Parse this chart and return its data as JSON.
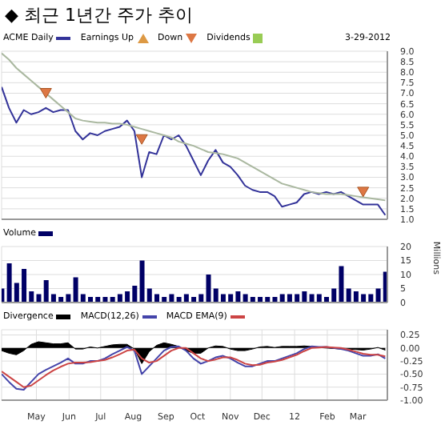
{
  "chart_data": [
    {
      "type": "line",
      "title": "◆ 최근 1년간 주가 추이",
      "legend": "top left",
      "grid": true,
      "tick_labels": "y",
      "annotations": [
        "Earnings Up",
        "Dividends",
        "3-29-2012"
      ],
      "xticks": [
        {
          "value": "2011-05-01",
          "label": null
        },
        {
          "value": "2011-06-01",
          "label": null
        },
        {
          "value": "2011-07-01",
          "label": null
        },
        {
          "value": "2011-08-01",
          "label": null
        },
        {
          "value": "2011-09-01",
          "label": null
        },
        {
          "value": "2011-10-01",
          "label": null
        },
        {
          "value": "2011-11-01",
          "label": null
        },
        {
          "value": "2011-12-01",
          "label": null
        },
        {
          "value": "2012-01-01",
          "label": null
        },
        {
          "value": "2012-02-01",
          "label": null
        },
        {
          "value": "2012-03-01",
          "label": null
        }
      ],
      "x": [
        "2011-03-29",
        "2011-04-05",
        "2011-04-12",
        "2011-04-19",
        "2011-04-26",
        "2011-05-03",
        "2011-05-10",
        "2011-05-17",
        "2011-05-24",
        "2011-05-31",
        "2011-06-07",
        "2011-06-14",
        "2011-06-21",
        "2011-06-28",
        "2011-07-05",
        "2011-07-12",
        "2011-07-19",
        "2011-07-26",
        "2011-08-02",
        "2011-08-09",
        "2011-08-16",
        "2011-08-23",
        "2011-08-30",
        "2011-09-06",
        "2011-09-13",
        "2011-09-20",
        "2011-09-27",
        "2011-10-04",
        "2011-10-11",
        "2011-10-18",
        "2011-10-25",
        "2011-11-01",
        "2011-11-08",
        "2011-11-15",
        "2011-11-22",
        "2011-11-29",
        "2011-12-06",
        "2011-12-13",
        "2011-12-20",
        "2011-12-27",
        "2012-01-03",
        "2012-01-10",
        "2012-01-17",
        "2012-01-24",
        "2012-01-31",
        "2012-02-07",
        "2012-02-14",
        "2012-02-21",
        "2012-02-28",
        "2012-03-06",
        "2012-03-13",
        "2012-03-20",
        "2012-03-27"
      ],
      "xlim": [
        "2011-03-29",
        "2012-03-29"
      ],
      "ylim": [
        1,
        9
      ],
      "yticks": [
        {
          "value": 1,
          "label": "1.0"
        },
        {
          "value": 1.5,
          "label": "1.5"
        },
        {
          "value": 2,
          "label": "2.0"
        },
        {
          "value": 2.5,
          "label": "2.5"
        },
        {
          "value": 3,
          "label": "3.0"
        },
        {
          "value": 3.5,
          "label": "3.5"
        },
        {
          "value": 4,
          "label": "4.0"
        },
        {
          "value": 4.5,
          "label": "4.5"
        },
        {
          "value": 5,
          "label": "5.0"
        },
        {
          "value": 5.5,
          "label": "5.5"
        },
        {
          "value": 6,
          "label": "6.0"
        },
        {
          "value": 6.5,
          "label": "6.5"
        },
        {
          "value": 7,
          "label": "7.0"
        },
        {
          "value": 7.5,
          "label": "7.5"
        },
        {
          "value": 8,
          "label": "8.0"
        },
        {
          "value": 8.5,
          "label": "8.5"
        },
        {
          "value": 9,
          "label": "9.0"
        }
      ],
      "series": [
        {
          "name": "ACME Daily",
          "color": "#333399",
          "values": [
            7.3,
            6.3,
            5.6,
            6.2,
            6.0,
            6.1,
            6.3,
            6.1,
            6.2,
            6.2,
            5.2,
            4.8,
            5.1,
            5.0,
            5.2,
            5.3,
            5.4,
            5.7,
            5.2,
            3.0,
            4.2,
            4.1,
            5.0,
            4.8,
            5.0,
            4.5,
            3.8,
            3.1,
            3.8,
            4.3,
            3.7,
            3.5,
            3.1,
            2.6,
            2.4,
            2.3,
            2.3,
            2.1,
            1.6,
            1.7,
            1.8,
            2.2,
            2.3,
            2.2,
            2.3,
            2.2,
            2.3,
            2.1,
            1.9,
            1.7,
            1.7,
            1.7,
            1.2
          ]
        },
        {
          "color": "#aab8a0",
          "values": [
            8.9,
            8.6,
            8.2,
            7.9,
            7.6,
            7.3,
            7.0,
            6.7,
            6.4,
            6.1,
            5.8,
            5.7,
            5.65,
            5.6,
            5.6,
            5.55,
            5.55,
            5.5,
            5.4,
            5.3,
            5.2,
            5.1,
            5.0,
            4.9,
            4.7,
            4.6,
            4.5,
            4.35,
            4.2,
            4.15,
            4.1,
            4.0,
            3.9,
            3.7,
            3.5,
            3.3,
            3.1,
            2.9,
            2.7,
            2.6,
            2.5,
            2.4,
            2.3,
            2.25,
            2.2,
            2.2,
            2.2,
            2.15,
            2.1,
            2.05,
            2.0,
            1.95,
            1.9
          ]
        },
        {
          "name": "Down",
          "type": "scatter",
          "marker": "triangle",
          "color": "#dd7744",
          "x": [
            "2011-05-10",
            "2011-08-09",
            "2012-03-06"
          ],
          "values": [
            7.0,
            4.8,
            2.3
          ]
        }
      ]
    },
    {
      "type": "bar",
      "legend": "top left",
      "grid": true,
      "tick_labels": "y",
      "ylabel": "Millions",
      "x": [
        "2011-03-29",
        "2011-04-05",
        "2011-04-12",
        "2011-04-19",
        "2011-04-26",
        "2011-05-03",
        "2011-05-10",
        "2011-05-17",
        "2011-05-24",
        "2011-05-31",
        "2011-06-07",
        "2011-06-14",
        "2011-06-21",
        "2011-06-28",
        "2011-07-05",
        "2011-07-12",
        "2011-07-19",
        "2011-07-26",
        "2011-08-02",
        "2011-08-09",
        "2011-08-16",
        "2011-08-23",
        "2011-08-30",
        "2011-09-06",
        "2011-09-13",
        "2011-09-20",
        "2011-09-27",
        "2011-10-04",
        "2011-10-11",
        "2011-10-18",
        "2011-10-25",
        "2011-11-01",
        "2011-11-08",
        "2011-11-15",
        "2011-11-22",
        "2011-11-29",
        "2011-12-06",
        "2011-12-13",
        "2011-12-20",
        "2011-12-27",
        "2012-01-03",
        "2012-01-10",
        "2012-01-17",
        "2012-01-24",
        "2012-01-31",
        "2012-02-07",
        "2012-02-14",
        "2012-02-21",
        "2012-02-28",
        "2012-03-06",
        "2012-03-13",
        "2012-03-20",
        "2012-03-27"
      ],
      "xlim": [
        "2011-03-29",
        "2012-03-29"
      ],
      "xticks": [
        {
          "value": "2011-05-01",
          "label": null
        },
        {
          "value": "2011-06-01",
          "label": null
        },
        {
          "value": "2011-07-01",
          "label": null
        },
        {
          "value": "2011-08-01",
          "label": null
        },
        {
          "value": "2011-09-01",
          "label": null
        },
        {
          "value": "2011-10-01",
          "label": null
        },
        {
          "value": "2011-11-01",
          "label": null
        },
        {
          "value": "2011-12-01",
          "label": null
        },
        {
          "value": "2012-01-01",
          "label": null
        },
        {
          "value": "2012-02-01",
          "label": null
        },
        {
          "value": "2012-03-01",
          "label": null
        }
      ],
      "ylim": [
        0,
        20
      ],
      "yticks": [
        0,
        5,
        10,
        15,
        20
      ],
      "series": [
        {
          "name": "Volume",
          "color": "#000066",
          "values": [
            5,
            14,
            7,
            12,
            4,
            3,
            8,
            3,
            2,
            3,
            9,
            3,
            2,
            2,
            2,
            2,
            3,
            4,
            6,
            15,
            5,
            3,
            2,
            3,
            2,
            3,
            2,
            3,
            10,
            5,
            3,
            3,
            4,
            3,
            2,
            2,
            2,
            2,
            3,
            3,
            3,
            4,
            3,
            3,
            2,
            5,
            13,
            5,
            4,
            3,
            3,
            5,
            11
          ]
        }
      ]
    },
    {
      "type": "line",
      "legend": "top left",
      "grid": true,
      "x": [
        "2011-03-29",
        "2011-04-05",
        "2011-04-12",
        "2011-04-19",
        "2011-04-26",
        "2011-05-03",
        "2011-05-10",
        "2011-05-17",
        "2011-05-24",
        "2011-05-31",
        "2011-06-07",
        "2011-06-14",
        "2011-06-21",
        "2011-06-28",
        "2011-07-05",
        "2011-07-12",
        "2011-07-19",
        "2011-07-26",
        "2011-08-02",
        "2011-08-09",
        "2011-08-16",
        "2011-08-23",
        "2011-08-30",
        "2011-09-06",
        "2011-09-13",
        "2011-09-20",
        "2011-09-27",
        "2011-10-04",
        "2011-10-11",
        "2011-10-18",
        "2011-10-25",
        "2011-11-01",
        "2011-11-08",
        "2011-11-15",
        "2011-11-22",
        "2011-11-29",
        "2011-12-06",
        "2011-12-13",
        "2011-12-20",
        "2011-12-27",
        "2012-01-03",
        "2012-01-10",
        "2012-01-17",
        "2012-01-24",
        "2012-01-31",
        "2012-02-07",
        "2012-02-14",
        "2012-02-21",
        "2012-02-28",
        "2012-03-06",
        "2012-03-13",
        "2012-03-20",
        "2012-03-27"
      ],
      "xlim": [
        "2011-03-29",
        "2012-03-29"
      ],
      "xticks": [
        {
          "value": "2011-05-01",
          "label": "May"
        },
        {
          "value": "2011-06-01",
          "label": "Jun"
        },
        {
          "value": "2011-07-01",
          "label": "Jul"
        },
        {
          "value": "2011-08-01",
          "label": "Aug"
        },
        {
          "value": "2011-09-01",
          "label": "Sep"
        },
        {
          "value": "2011-10-01",
          "label": "Oct"
        },
        {
          "value": "2011-11-01",
          "label": "Nov"
        },
        {
          "value": "2011-12-01",
          "label": "Dec"
        },
        {
          "value": "2012-01-01",
          "label": "12"
        },
        {
          "value": "2012-02-01",
          "label": "Feb"
        },
        {
          "value": "2012-03-01",
          "label": "Mar"
        }
      ],
      "ylim": [
        -1,
        0.35
      ],
      "yticks": [
        {
          "value": -1,
          "label": "-1.00"
        },
        {
          "value": -0.75,
          "label": "-0.75"
        },
        {
          "value": -0.5,
          "label": "-0.50"
        },
        {
          "value": -0.25,
          "label": "-0.25"
        },
        {
          "value": 0,
          "label": "0.00"
        },
        {
          "value": 0.25,
          "label": "0.25"
        }
      ],
      "series": [
        {
          "name": "Divergence",
          "type": "area",
          "color": "#000000",
          "values": [
            -0.05,
            -0.1,
            -0.13,
            -0.05,
            0.07,
            0.12,
            0.1,
            0.08,
            0.08,
            0.1,
            -0.02,
            -0.02,
            0.02,
            0,
            0.03,
            0.06,
            0.07,
            0.07,
            -0.02,
            -0.3,
            -0.07,
            0.05,
            0.1,
            0.07,
            0.03,
            -0.05,
            -0.1,
            -0.1,
            0,
            0.04,
            0.03,
            -0.02,
            -0.05,
            -0.05,
            -0.02,
            0.02,
            0.03,
            0.01,
            0.03,
            0.03,
            0.03,
            0.04,
            0.03,
            0.01,
            0,
            -0.01,
            -0.02,
            -0.02,
            -0.03,
            -0.04,
            -0.02,
            0.01,
            -0.04
          ]
        },
        {
          "name": "MACD(12,26)",
          "color": "#4444aa",
          "values": [
            -0.5,
            -0.65,
            -0.78,
            -0.8,
            -0.65,
            -0.5,
            -0.42,
            -0.35,
            -0.28,
            -0.2,
            -0.3,
            -0.3,
            -0.25,
            -0.25,
            -0.2,
            -0.12,
            -0.05,
            0.02,
            -0.05,
            -0.5,
            -0.35,
            -0.2,
            -0.05,
            0.02,
            0.03,
            -0.05,
            -0.2,
            -0.3,
            -0.25,
            -0.18,
            -0.15,
            -0.2,
            -0.28,
            -0.35,
            -0.35,
            -0.3,
            -0.25,
            -0.25,
            -0.2,
            -0.15,
            -0.1,
            -0.02,
            0.03,
            0.02,
            0.02,
            0,
            -0.02,
            -0.05,
            -0.1,
            -0.15,
            -0.15,
            -0.12,
            -0.2
          ]
        },
        {
          "name": "MACD EMA(9)",
          "color": "#cc4444",
          "values": [
            -0.45,
            -0.55,
            -0.65,
            -0.75,
            -0.72,
            -0.62,
            -0.52,
            -0.43,
            -0.36,
            -0.3,
            -0.28,
            -0.28,
            -0.27,
            -0.25,
            -0.23,
            -0.18,
            -0.12,
            -0.05,
            -0.03,
            -0.2,
            -0.28,
            -0.25,
            -0.15,
            -0.05,
            0,
            0,
            -0.1,
            -0.2,
            -0.25,
            -0.22,
            -0.18,
            -0.18,
            -0.23,
            -0.3,
            -0.33,
            -0.32,
            -0.28,
            -0.26,
            -0.23,
            -0.18,
            -0.13,
            -0.06,
            0,
            0.01,
            0.02,
            0.01,
            0,
            -0.03,
            -0.07,
            -0.11,
            -0.13,
            -0.13,
            -0.16
          ]
        }
      ]
    }
  ]
}
